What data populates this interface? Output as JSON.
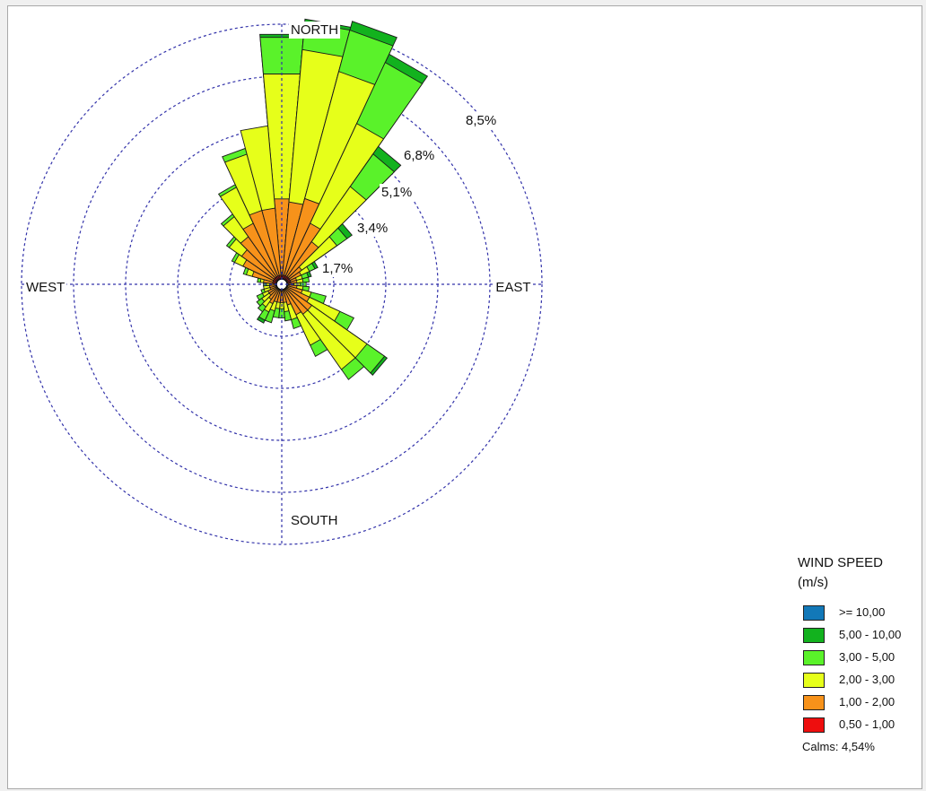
{
  "chart_data": {
    "type": "windrose",
    "unit": "%",
    "grid": true,
    "legend_position": "bottom-right",
    "compass": [
      "NORTH",
      "EAST",
      "SOUTH",
      "WEST"
    ],
    "rings": [
      {
        "value": 1.7,
        "label": "1,7%"
      },
      {
        "value": 3.4,
        "label": "3,4%"
      },
      {
        "value": 5.1,
        "label": "5,1%"
      },
      {
        "value": 6.8,
        "label": "6,8%"
      },
      {
        "value": 8.5,
        "label": "8,5%"
      }
    ],
    "rmax": 8.5,
    "sector_width_deg": 10,
    "legend": {
      "title_line1": "WIND SPEED",
      "title_line2": "(m/s)",
      "classes": [
        {
          "label": ">= 10,00",
          "color": "#1278b8"
        },
        {
          "label": "5,00 - 10,00",
          "color": "#12b21e"
        },
        {
          "label": "3,00 - 5,00",
          "color": "#5af22a"
        },
        {
          "label": "2,00 - 3,00",
          "color": "#e6ff1a"
        },
        {
          "label": "1,00 - 2,00",
          "color": "#f7921a"
        },
        {
          "label": "0,50 - 1,00",
          "color": "#ee0e0e"
        }
      ],
      "calms": "Calms: 4,54%"
    },
    "bin_order": [
      "0,50 - 1,00",
      "1,00 - 2,00",
      "2,00 - 3,00",
      "3,00 - 5,00",
      "5,00 - 10,00",
      ">= 10,00"
    ],
    "directions_deg": [
      0,
      10,
      20,
      30,
      40,
      50,
      60,
      70,
      80,
      90,
      100,
      110,
      120,
      130,
      140,
      150,
      160,
      170,
      180,
      190,
      200,
      210,
      220,
      230,
      240,
      250,
      260,
      270,
      280,
      290,
      300,
      310,
      320,
      330,
      340,
      350
    ],
    "cumulative": [
      [
        0.3,
        2.8,
        6.9,
        8.1,
        8.2,
        8.2
      ],
      [
        0.3,
        2.7,
        7.7,
        8.6,
        8.7,
        8.7
      ],
      [
        0.3,
        2.9,
        7.2,
        8.6,
        8.9,
        8.9
      ],
      [
        0.3,
        2.2,
        5.8,
        8.0,
        8.3,
        8.3
      ],
      [
        0.3,
        1.7,
        3.9,
        5.2,
        5.5,
        5.5
      ],
      [
        0.3,
        0.8,
        2.2,
        2.6,
        2.8,
        2.8
      ],
      [
        0.3,
        0.7,
        1.0,
        1.2,
        1.3,
        1.3
      ],
      [
        0.3,
        0.5,
        0.7,
        0.9,
        1.0,
        1.0
      ],
      [
        0.3,
        0.5,
        0.7,
        0.9,
        0.9,
        0.9
      ],
      [
        0.2,
        0.4,
        0.6,
        0.8,
        0.8,
        0.8
      ],
      [
        0.2,
        0.5,
        0.7,
        0.9,
        0.9,
        0.9
      ],
      [
        0.2,
        0.7,
        1.0,
        1.5,
        1.5,
        1.5
      ],
      [
        0.2,
        1.0,
        2.1,
        2.6,
        2.6,
        2.6
      ],
      [
        0.2,
        1.2,
        3.4,
        4.1,
        4.2,
        4.2
      ],
      [
        0.2,
        1.2,
        3.4,
        3.8,
        3.8,
        3.8
      ],
      [
        0.2,
        1.1,
        2.2,
        2.6,
        2.6,
        2.6
      ],
      [
        0.2,
        0.7,
        1.2,
        1.5,
        1.5,
        1.5
      ],
      [
        0.2,
        0.6,
        0.9,
        1.2,
        1.2,
        1.2
      ],
      [
        0.2,
        0.6,
        0.8,
        1.1,
        1.1,
        1.1
      ],
      [
        0.2,
        0.6,
        0.8,
        1.1,
        1.1,
        1.1
      ],
      [
        0.2,
        0.6,
        0.9,
        1.3,
        1.3,
        1.3
      ],
      [
        0.2,
        0.7,
        1.0,
        1.3,
        1.4,
        1.4
      ],
      [
        0.2,
        0.6,
        0.9,
        1.1,
        1.1,
        1.1
      ],
      [
        0.2,
        0.5,
        0.8,
        1.0,
        1.0,
        1.0
      ],
      [
        0.2,
        0.5,
        0.7,
        0.9,
        0.9,
        0.9
      ],
      [
        0.2,
        0.4,
        0.6,
        0.7,
        0.7,
        0.7
      ],
      [
        0.2,
        0.4,
        0.6,
        0.6,
        0.6,
        0.6
      ],
      [
        0.2,
        0.4,
        0.5,
        0.6,
        0.6,
        0.6
      ],
      [
        0.3,
        0.6,
        0.7,
        0.8,
        0.8,
        0.8
      ],
      [
        0.3,
        1.0,
        1.2,
        1.3,
        1.3,
        1.3
      ],
      [
        0.3,
        1.4,
        1.7,
        1.8,
        1.8,
        1.8
      ],
      [
        0.3,
        1.6,
        2.1,
        2.2,
        2.2,
        2.2
      ],
      [
        0.3,
        1.9,
        2.7,
        2.8,
        2.8,
        2.8
      ],
      [
        0.3,
        2.2,
        3.5,
        3.6,
        3.6,
        3.6
      ],
      [
        0.3,
        2.5,
        4.4,
        4.6,
        4.6,
        4.6
      ],
      [
        0.3,
        2.5,
        5.2,
        5.2,
        5.2,
        5.2
      ]
    ]
  }
}
